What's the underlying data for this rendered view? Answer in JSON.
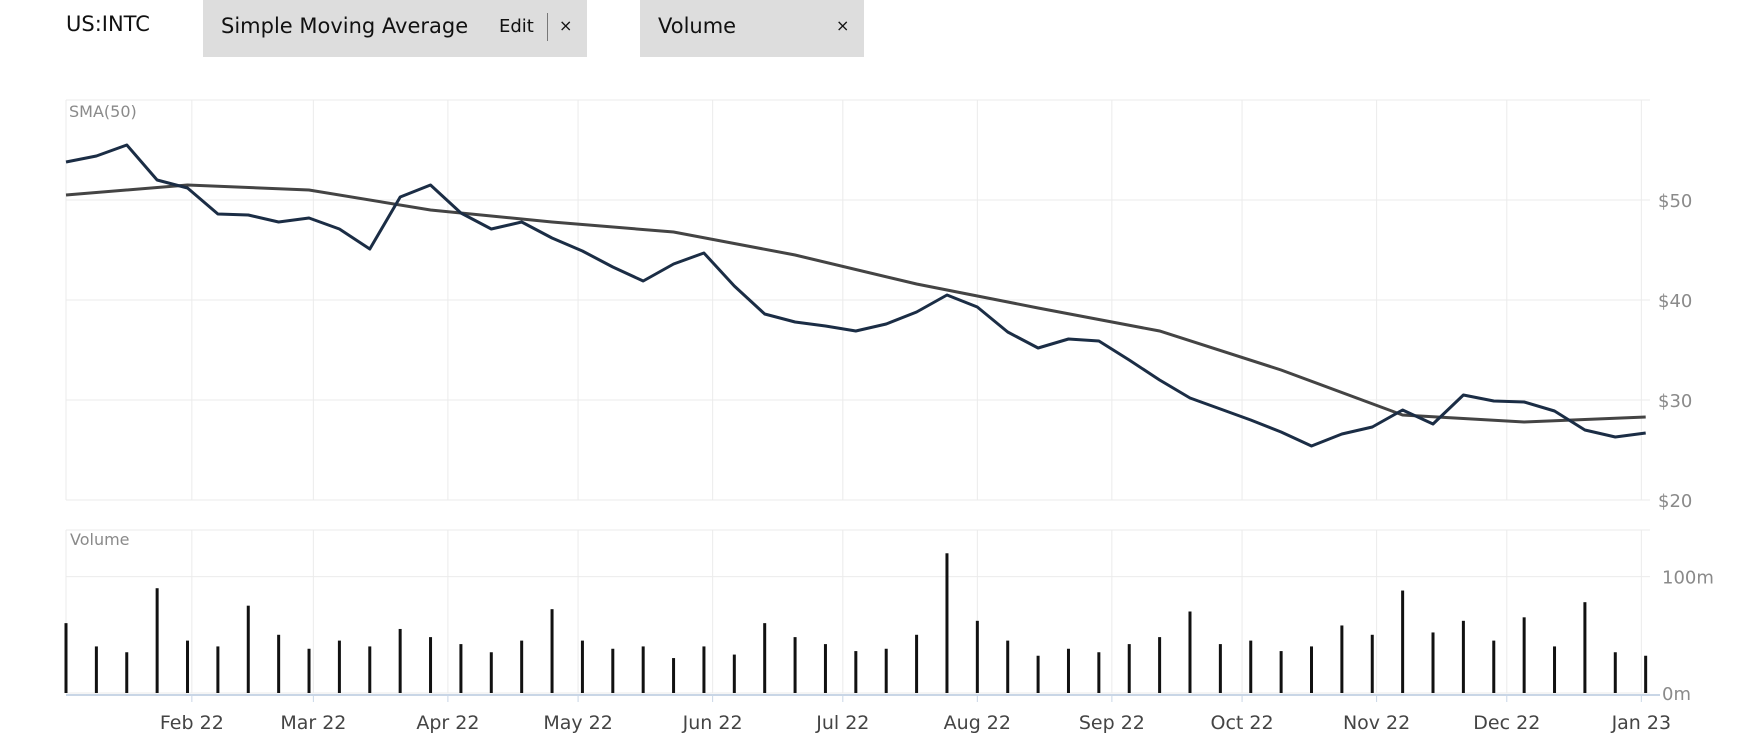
{
  "header": {
    "ticker": "US:INTC",
    "indicators": [
      {
        "label": "Simple Moving Average",
        "edit_label": "Edit",
        "close_label": "×"
      },
      {
        "label": "Volume",
        "close_label": "×"
      }
    ]
  },
  "chart_data": [
    {
      "type": "line",
      "panel_label": "SMA(50)",
      "y_tick_labels": [
        "$20",
        "$30",
        "$40",
        "$50"
      ],
      "y_ticks": [
        20,
        30,
        40,
        50
      ],
      "ylim": [
        20,
        60
      ],
      "x_tick_labels": [
        "Feb 22",
        "Mar 22",
        "Apr 22",
        "May 22",
        "Jun 22",
        "Jul 22",
        "Aug 22",
        "Sep 22",
        "Oct 22",
        "Nov 22",
        "Dec 22",
        "Jan 23"
      ],
      "grid": true,
      "colors": {
        "price": "#1b2d45",
        "sma": "#444444",
        "grid": "#ebebeb",
        "axis_text": "#8a8a8a"
      },
      "series": [
        {
          "key": "price",
          "x": [
            "2022-01-03",
            "2022-01-10",
            "2022-01-17",
            "2022-01-24",
            "2022-01-31",
            "2022-02-07",
            "2022-02-14",
            "2022-02-21",
            "2022-02-28",
            "2022-03-07",
            "2022-03-14",
            "2022-03-21",
            "2022-03-28",
            "2022-04-04",
            "2022-04-11",
            "2022-04-18",
            "2022-04-25",
            "2022-05-02",
            "2022-05-09",
            "2022-05-16",
            "2022-05-23",
            "2022-05-30",
            "2022-06-06",
            "2022-06-13",
            "2022-06-20",
            "2022-06-27",
            "2022-07-04",
            "2022-07-11",
            "2022-07-18",
            "2022-07-25",
            "2022-08-01",
            "2022-08-08",
            "2022-08-15",
            "2022-08-22",
            "2022-08-29",
            "2022-09-05",
            "2022-09-12",
            "2022-09-19",
            "2022-09-26",
            "2022-10-03",
            "2022-10-10",
            "2022-10-17",
            "2022-10-24",
            "2022-10-31",
            "2022-11-07",
            "2022-11-14",
            "2022-11-21",
            "2022-11-28",
            "2022-12-05",
            "2022-12-12",
            "2022-12-19",
            "2022-12-26",
            "2023-01-02"
          ],
          "values": [
            53.8,
            54.4,
            55.5,
            52.0,
            51.2,
            48.6,
            48.5,
            47.8,
            48.2,
            47.1,
            45.1,
            50.3,
            51.5,
            48.7,
            47.1,
            47.8,
            46.2,
            44.9,
            43.3,
            41.9,
            43.6,
            44.7,
            41.4,
            38.6,
            37.8,
            37.4,
            36.9,
            37.6,
            38.8,
            40.5,
            39.3,
            36.8,
            35.2,
            36.1,
            35.9,
            34.0,
            32.0,
            30.2,
            29.1,
            28.0,
            26.8,
            25.4,
            26.6,
            27.3,
            29.0,
            27.6,
            30.5,
            29.9,
            29.8,
            28.9,
            27.0,
            26.3,
            26.7
          ]
        },
        {
          "key": "sma",
          "x": [
            "2022-01-03",
            "2022-01-31",
            "2022-02-28",
            "2022-03-28",
            "2022-04-25",
            "2022-05-23",
            "2022-06-20",
            "2022-07-18",
            "2022-08-15",
            "2022-09-12",
            "2022-10-10",
            "2022-11-07",
            "2022-12-05",
            "2023-01-02"
          ],
          "values": [
            50.5,
            51.5,
            51.0,
            49.0,
            47.8,
            46.8,
            44.5,
            41.6,
            39.2,
            36.9,
            33.0,
            28.5,
            27.8,
            28.3
          ]
        }
      ]
    },
    {
      "type": "bar",
      "panel_label": "Volume",
      "y_tick_labels": [
        "0m",
        "100m"
      ],
      "y_ticks": [
        0,
        100
      ],
      "ylim": [
        0,
        140
      ],
      "bar_color": "#111111",
      "x": [
        "2022-01-03",
        "2022-01-10",
        "2022-01-17",
        "2022-01-24",
        "2022-01-31",
        "2022-02-07",
        "2022-02-14",
        "2022-02-21",
        "2022-02-28",
        "2022-03-07",
        "2022-03-14",
        "2022-03-21",
        "2022-03-28",
        "2022-04-04",
        "2022-04-11",
        "2022-04-18",
        "2022-04-25",
        "2022-05-02",
        "2022-05-09",
        "2022-05-16",
        "2022-05-23",
        "2022-05-30",
        "2022-06-06",
        "2022-06-13",
        "2022-06-20",
        "2022-06-27",
        "2022-07-04",
        "2022-07-11",
        "2022-07-18",
        "2022-07-25",
        "2022-08-01",
        "2022-08-08",
        "2022-08-15",
        "2022-08-22",
        "2022-08-29",
        "2022-09-05",
        "2022-09-12",
        "2022-09-19",
        "2022-09-26",
        "2022-10-03",
        "2022-10-10",
        "2022-10-17",
        "2022-10-24",
        "2022-10-31",
        "2022-11-07",
        "2022-11-14",
        "2022-11-21",
        "2022-11-28",
        "2022-12-05",
        "2022-12-12",
        "2022-12-19",
        "2022-12-26",
        "2023-01-02"
      ],
      "values": [
        60,
        40,
        35,
        90,
        45,
        40,
        75,
        50,
        38,
        45,
        40,
        55,
        48,
        42,
        35,
        45,
        72,
        45,
        38,
        40,
        30,
        40,
        33,
        60,
        48,
        42,
        36,
        38,
        50,
        120,
        62,
        45,
        32,
        38,
        35,
        42,
        48,
        70,
        42,
        45,
        36,
        40,
        58,
        50,
        88,
        52,
        62,
        45,
        65,
        40,
        78,
        35,
        32
      ]
    }
  ]
}
